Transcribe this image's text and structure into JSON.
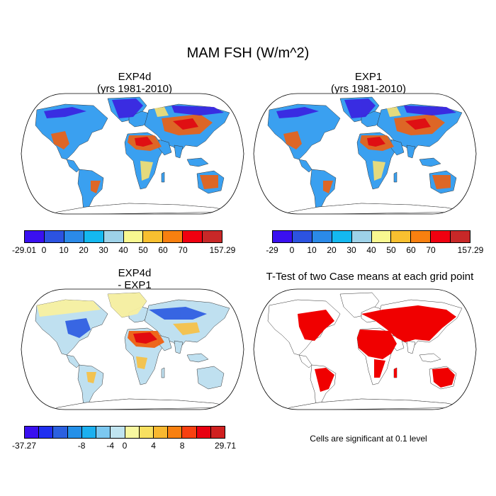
{
  "figure": {
    "title": "MAM FSH (W/m^2)",
    "note": "Cells are significant at 0.1 level"
  },
  "panels": [
    {
      "id": "exp4d",
      "title_line1": "EXP4d",
      "title_line2": "(yrs 1981-2010)",
      "colorbar": {
        "colors": [
          "#3a10f0",
          "#2c53e0",
          "#2b8ae8",
          "#14b8f0",
          "#9ed2e8",
          "#f8f890",
          "#f8c030",
          "#f88010",
          "#f00010",
          "#c82828"
        ],
        "labels": [
          "-29.01",
          "0",
          "10",
          "20",
          "30",
          "40",
          "50",
          "60",
          "70",
          "157.29"
        ]
      }
    },
    {
      "id": "exp1",
      "title_line1": "EXP1",
      "title_line2": "(yrs 1981-2010)",
      "colorbar": {
        "colors": [
          "#3a10f0",
          "#2c53e0",
          "#2b8ae8",
          "#14b8f0",
          "#9ed2e8",
          "#f8f890",
          "#f8c030",
          "#f88010",
          "#f00010",
          "#c82828"
        ],
        "labels": [
          "-29",
          "0",
          "10",
          "20",
          "30",
          "40",
          "50",
          "60",
          "70",
          "157.29"
        ]
      }
    },
    {
      "id": "diff",
      "title_line1": "EXP4d",
      "title_line2": "- EXP1",
      "colorbar": {
        "colors": [
          "#3a10f0",
          "#2030f0",
          "#2b60e0",
          "#2490e8",
          "#1cb0f0",
          "#7cc8f0",
          "#c0e4f0",
          "#f8f8a0",
          "#f8e060",
          "#f8b830",
          "#f88010",
          "#f84010",
          "#e80010",
          "#d02020"
        ],
        "labels": [
          "-37.27",
          "-8",
          "-4",
          "0",
          "4",
          "8",
          "29.71"
        ]
      }
    },
    {
      "id": "ttest",
      "title_line1": "T-Test of two Case means at each grid point",
      "title_line2": ""
    }
  ]
}
